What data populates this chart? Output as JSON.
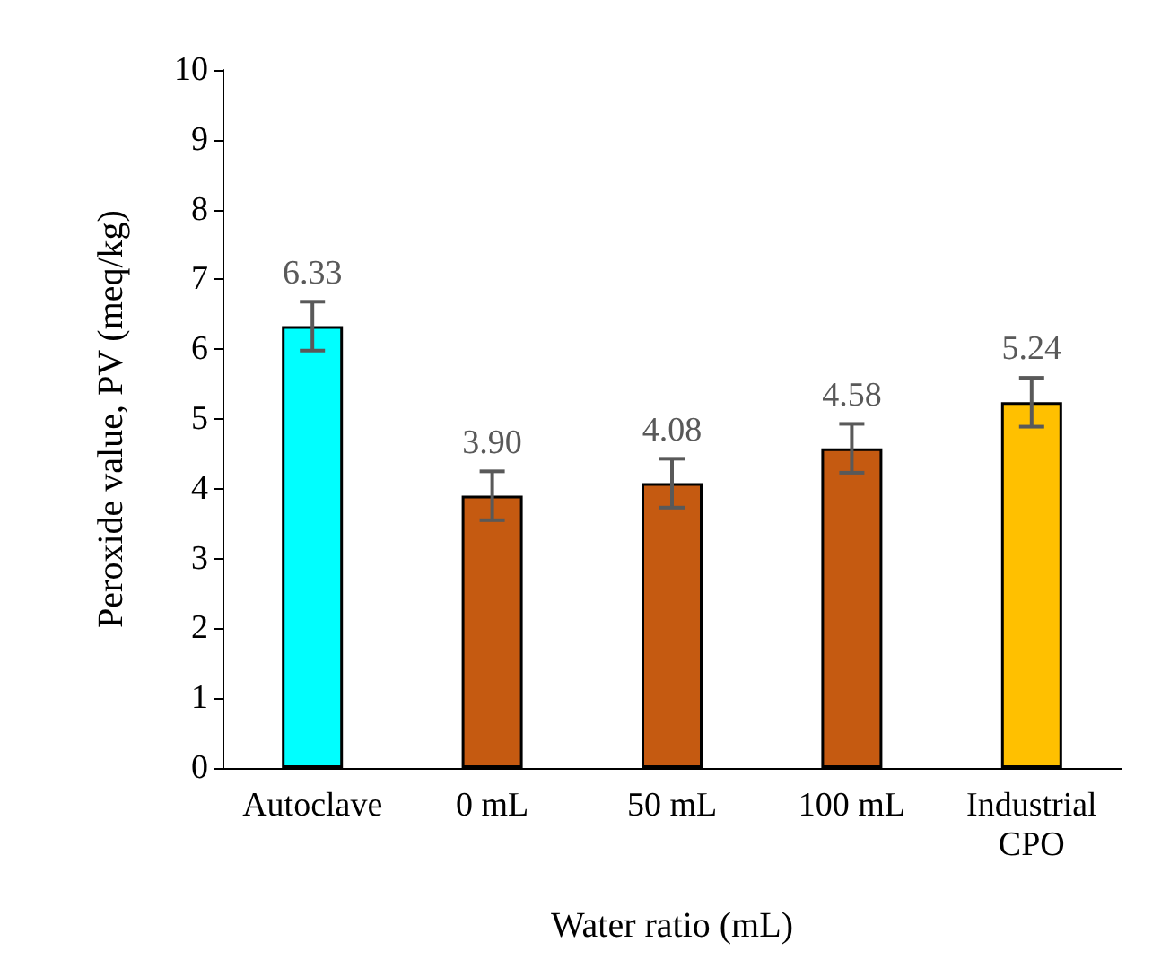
{
  "chart_data": {
    "type": "bar",
    "xlabel": "Water ratio (mL)",
    "ylabel": "Peroxide value, PV (meq/kg)",
    "categories": [
      "Autoclave",
      "0 mL",
      "50 mL",
      "100 mL",
      "Industrial\nCPO"
    ],
    "values": [
      6.33,
      3.9,
      4.08,
      4.58,
      5.24
    ],
    "value_labels": [
      "6.33",
      "3.90",
      "4.08",
      "4.58",
      "5.24"
    ],
    "colors": [
      "#00ffff",
      "#c55a11",
      "#c55a11",
      "#c55a11",
      "#ffc000"
    ],
    "errors": [
      0.35,
      0.35,
      0.35,
      0.35,
      0.35
    ],
    "ylim": [
      0,
      10
    ],
    "yticks": [
      0,
      1,
      2,
      3,
      4,
      5,
      6,
      7,
      8,
      9,
      10
    ],
    "grid": false
  }
}
